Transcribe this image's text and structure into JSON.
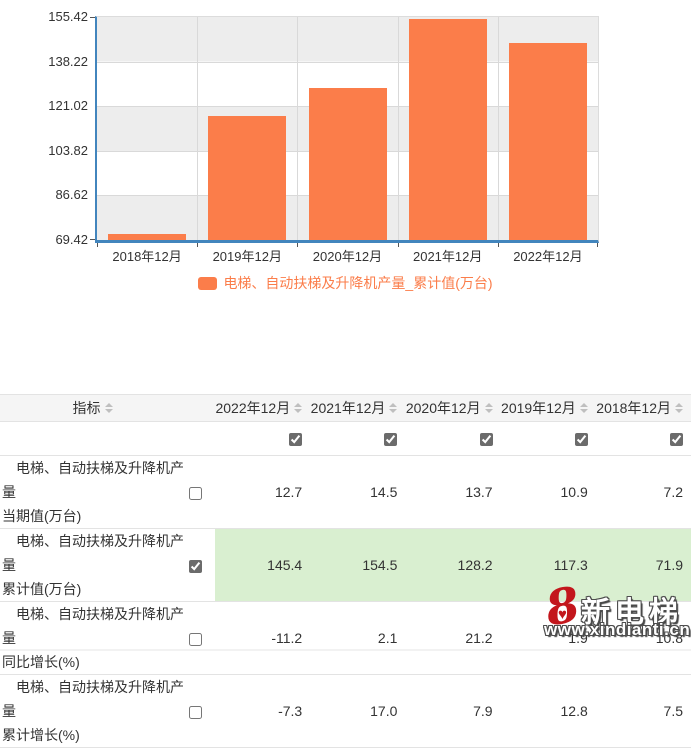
{
  "colors": {
    "bar_orange": "#FB7D4A",
    "axis_blue": "#4285BD",
    "highlight_green": "#D9EFD0",
    "band_gray": "#EDEDED",
    "grid_gray": "#D9D9D9",
    "header_bg": "#F5F5F5"
  },
  "chart_data": {
    "type": "bar",
    "categories": [
      "2018年12月",
      "2019年12月",
      "2020年12月",
      "2021年12月",
      "2022年12月"
    ],
    "values": [
      71.9,
      117.3,
      128.2,
      154.5,
      145.4
    ],
    "series_name": "电梯、自动扶梯及升降机产量_累计值(万台)",
    "title": "",
    "xlabel": "",
    "ylabel": "",
    "ylim": [
      69.42,
      155.42
    ],
    "y_ticks": [
      69.42,
      86.62,
      103.82,
      121.02,
      138.22,
      155.42
    ],
    "legend_position": "bottom",
    "grid": "banded-horizontal"
  },
  "table": {
    "header": {
      "indicator_label": "指标",
      "columns": [
        "2022年12月",
        "2021年12月",
        "2020年12月",
        "2019年12月",
        "2018年12月"
      ],
      "column_checkboxes": [
        true,
        true,
        true,
        true,
        true
      ]
    },
    "rows": [
      {
        "name_lines": [
          "电梯、自动扶梯及升降机产量",
          "当期值(万台)"
        ],
        "checked": false,
        "highlighted": false,
        "values": [
          "12.7",
          "14.5",
          "13.7",
          "10.9",
          "7.2"
        ]
      },
      {
        "name_lines": [
          "电梯、自动扶梯及升降机产量",
          "累计值(万台)"
        ],
        "checked": true,
        "highlighted": true,
        "values": [
          "145.4",
          "154.5",
          "128.2",
          "117.3",
          "71.9"
        ]
      },
      {
        "name_lines": [
          "电梯、自动扶梯及升降机产量",
          "同比增长(%)"
        ],
        "checked": false,
        "highlighted": false,
        "values": [
          "-11.2",
          "2.1",
          "21.2",
          "1.9",
          "10.8"
        ]
      },
      {
        "name_lines": [
          "电梯、自动扶梯及升降机产量",
          "累计增长(%)"
        ],
        "checked": false,
        "highlighted": false,
        "values": [
          "-7.3",
          "17.0",
          "7.9",
          "12.8",
          "7.5"
        ]
      }
    ]
  },
  "watermark": {
    "logo_text": "8",
    "heart_icon": "♥",
    "brand": "新电梯",
    "url": "www.xindianti.cn"
  }
}
